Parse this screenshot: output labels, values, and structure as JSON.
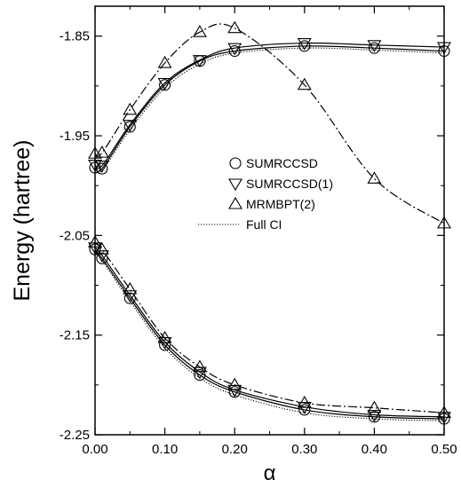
{
  "chart_data": {
    "type": "line",
    "title": "",
    "xlabel": "α",
    "ylabel": "Energy (hartree)",
    "xlim": [
      0.0,
      0.5
    ],
    "ylim": [
      -2.25,
      -1.82
    ],
    "xticks": [
      0.0,
      0.1,
      0.2,
      0.3,
      0.4,
      0.5
    ],
    "xtick_labels": [
      "0.00",
      "0.10",
      "0.20",
      "0.30",
      "0.40",
      "0.50"
    ],
    "yticks": [
      -1.85,
      -1.95,
      -2.05,
      -2.15,
      -2.25
    ],
    "ytick_labels": [
      "-1.85",
      "-1.95",
      "-2.05",
      "-2.15",
      "-2.25"
    ],
    "grid": false,
    "legend_position": "center-right",
    "series": [
      {
        "name": "SUMRCCSD",
        "line": "solid",
        "marker": "circle",
        "x": [
          0.0,
          0.01,
          0.05,
          0.1,
          0.15,
          0.2,
          0.3,
          0.4,
          0.5
        ],
        "upper": [
          -1.982,
          -1.983,
          -1.941,
          -1.899,
          -1.875,
          -1.865,
          -1.86,
          -1.862,
          -1.865
        ],
        "lower": [
          -2.064,
          -2.073,
          -2.113,
          -2.16,
          -2.19,
          -2.207,
          -2.225,
          -2.232,
          -2.234
        ]
      },
      {
        "name": "SUMRCCSD(1)",
        "line": "solid",
        "marker": "triangle-down",
        "x": [
          0.0,
          0.01,
          0.05,
          0.1,
          0.15,
          0.2,
          0.3,
          0.4,
          0.5
        ],
        "upper": [
          -1.979,
          -1.98,
          -1.939,
          -1.897,
          -1.874,
          -1.862,
          -1.857,
          -1.859,
          -1.861
        ],
        "lower": [
          -2.062,
          -2.07,
          -2.11,
          -2.157,
          -2.187,
          -2.205,
          -2.222,
          -2.23,
          -2.232
        ]
      },
      {
        "name": "MRMBPT(2)",
        "line": "dashdot",
        "marker": "triangle-up",
        "x": [
          0.0,
          0.01,
          0.05,
          0.1,
          0.15,
          0.2,
          0.3,
          0.4,
          0.5
        ],
        "upper": [
          -1.968,
          -1.967,
          -1.924,
          -1.877,
          -1.846,
          -1.842,
          -1.899,
          -1.993,
          -2.038
        ],
        "lower": [
          -2.057,
          -2.064,
          -2.104,
          -2.153,
          -2.182,
          -2.2,
          -2.218,
          -2.223,
          -2.228
        ]
      },
      {
        "name": "Full CI",
        "line": "dotted",
        "marker": "none",
        "x": [
          0.0,
          0.01,
          0.05,
          0.1,
          0.15,
          0.2,
          0.3,
          0.4,
          0.5
        ],
        "upper": [
          -1.984,
          -1.985,
          -1.944,
          -1.902,
          -1.878,
          -1.867,
          -1.862,
          -1.864,
          -1.867
        ],
        "lower": [
          -2.066,
          -2.075,
          -2.116,
          -2.163,
          -2.193,
          -2.21,
          -2.228,
          -2.234,
          -2.236
        ]
      }
    ]
  }
}
